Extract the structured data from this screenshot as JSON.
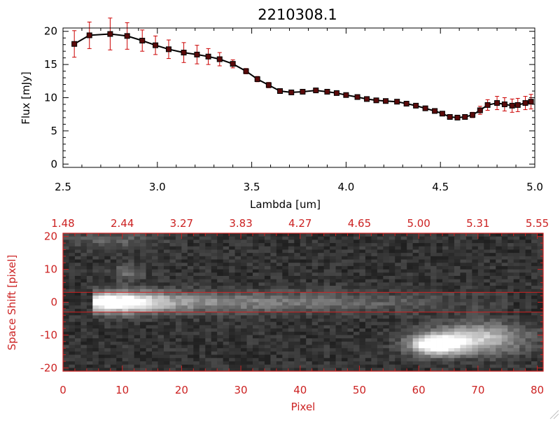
{
  "chart_data": [
    {
      "type": "line",
      "title": "2210308.1",
      "xlabel": "Lambda [um]",
      "ylabel": "Flux [mJy]",
      "xlim": [
        2.5,
        5.0
      ],
      "ylim": [
        -0.5,
        20.5
      ],
      "x_ticks": [
        "2.5",
        "3.0",
        "3.5",
        "4.0",
        "4.5",
        "5.0"
      ],
      "y_ticks": [
        "0",
        "5",
        "10",
        "15",
        "20"
      ],
      "series": [
        {
          "x": [
            2.56,
            2.64,
            2.75,
            2.84,
            2.92,
            2.99,
            3.06,
            3.14,
            3.21,
            3.27,
            3.33,
            3.4,
            3.47,
            3.53,
            3.59,
            3.65,
            3.71,
            3.77,
            3.84,
            3.9,
            3.95,
            4.0,
            4.06,
            4.11,
            4.16,
            4.21,
            4.27,
            4.32,
            4.37,
            4.42,
            4.47,
            4.51,
            4.55,
            4.59,
            4.63,
            4.67,
            4.71,
            4.75,
            4.8,
            4.84,
            4.88,
            4.91,
            4.95,
            4.98
          ],
          "y": [
            18.1,
            19.4,
            19.6,
            19.3,
            18.6,
            17.9,
            17.3,
            16.8,
            16.5,
            16.2,
            15.8,
            15.1,
            14.0,
            12.8,
            11.9,
            11.0,
            10.8,
            10.9,
            11.1,
            10.9,
            10.7,
            10.4,
            10.1,
            9.8,
            9.6,
            9.5,
            9.4,
            9.1,
            8.8,
            8.4,
            8.0,
            7.6,
            7.1,
            7.0,
            7.1,
            7.4,
            8.1,
            8.9,
            9.2,
            9.0,
            8.8,
            8.9,
            9.2,
            9.4
          ],
          "err": [
            2.0,
            2.0,
            2.4,
            2.0,
            1.6,
            1.4,
            1.4,
            1.5,
            1.4,
            1.2,
            1.0,
            0.6,
            0.4,
            0.4,
            0.4,
            0.3,
            0.3,
            0.3,
            0.3,
            0.3,
            0.3,
            0.3,
            0.3,
            0.3,
            0.3,
            0.3,
            0.3,
            0.3,
            0.3,
            0.3,
            0.3,
            0.3,
            0.3,
            0.3,
            0.3,
            0.4,
            0.6,
            0.8,
            1.0,
            1.0,
            1.0,
            1.0,
            1.0,
            1.1
          ],
          "line_color": "#000000",
          "marker_color": "#5a0a0a",
          "error_color": "#cc0000"
        }
      ],
      "grid": false
    },
    {
      "type": "heatmap",
      "xlabel": "Pixel",
      "ylabel": "Space Shift [pixel]",
      "xlim": [
        0,
        81
      ],
      "ylim": [
        -21,
        21
      ],
      "x_ticks": [
        "0",
        "10",
        "20",
        "30",
        "40",
        "50",
        "60",
        "70",
        "80"
      ],
      "y_ticks": [
        "-20",
        "-10",
        "0",
        "10",
        "20"
      ],
      "top_axis_ticks": [
        "1.48",
        "2.44",
        "3.27",
        "3.83",
        "4.27",
        "4.65",
        "5.00",
        "5.31",
        "5.55"
      ],
      "extraction_window": [
        -3,
        3
      ],
      "sources": [
        {
          "label": "main trace",
          "pixel_range": [
            5,
            75
          ],
          "shift": 0,
          "peak_pixel": 10
        },
        {
          "label": "secondary blob",
          "pixel_range": [
            56,
            81
          ],
          "shift": -13,
          "peak_pixel": 63
        },
        {
          "label": "faint blob",
          "pixel_range": [
            8,
            14
          ],
          "shift": 9,
          "peak_pixel": 11
        }
      ],
      "colors": {
        "axis": "#cc2222",
        "background": "#000000",
        "signal": "#ffffff"
      }
    }
  ]
}
